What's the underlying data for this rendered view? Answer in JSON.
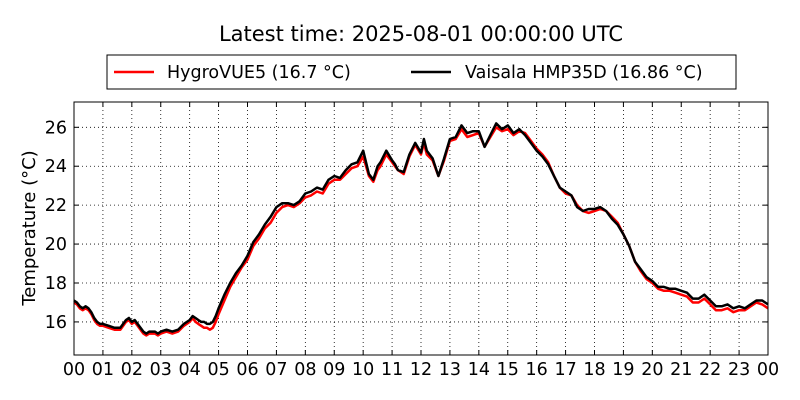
{
  "chart_data": {
    "type": "line",
    "title": "Latest time: 2025-08-01 00:00:00 UTC",
    "xlabel": "",
    "ylabel": "Temperature (°C)",
    "x_unit": "hour of day (UTC)",
    "xlim": [
      0,
      24
    ],
    "ylim": [
      14.3,
      27.3
    ],
    "x_ticks": [
      0,
      1,
      2,
      3,
      4,
      5,
      6,
      7,
      8,
      9,
      10,
      11,
      12,
      13,
      14,
      15,
      16,
      17,
      18,
      19,
      20,
      21,
      22,
      23,
      24
    ],
    "x_tick_labels": [
      "00",
      "01",
      "02",
      "03",
      "04",
      "05",
      "06",
      "07",
      "08",
      "09",
      "10",
      "11",
      "12",
      "13",
      "14",
      "15",
      "16",
      "17",
      "18",
      "19",
      "20",
      "21",
      "22",
      "23",
      "00"
    ],
    "y_ticks": [
      16,
      18,
      20,
      22,
      24,
      26
    ],
    "grid": true,
    "legend_position": "top-center",
    "series": [
      {
        "name": "HygroVUE5 (16.7 °C)",
        "color": "#ff0000",
        "x": [
          0,
          0.1,
          0.2,
          0.3,
          0.4,
          0.5,
          0.6,
          0.7,
          0.8,
          0.9,
          1.0,
          1.2,
          1.4,
          1.6,
          1.8,
          1.9,
          2.0,
          2.1,
          2.2,
          2.3,
          2.4,
          2.5,
          2.6,
          2.7,
          2.8,
          2.9,
          3.0,
          3.2,
          3.4,
          3.6,
          3.8,
          4.0,
          4.1,
          4.2,
          4.3,
          4.4,
          4.5,
          4.6,
          4.7,
          4.8,
          4.9,
          5.0,
          5.2,
          5.4,
          5.6,
          5.8,
          6.0,
          6.2,
          6.4,
          6.6,
          6.8,
          7.0,
          7.2,
          7.4,
          7.6,
          7.8,
          8.0,
          8.2,
          8.4,
          8.6,
          8.8,
          9.0,
          9.2,
          9.4,
          9.6,
          9.8,
          10.0,
          10.2,
          10.35,
          10.5,
          10.6,
          10.8,
          11.0,
          11.1,
          11.2,
          11.4,
          11.6,
          11.8,
          12.0,
          12.1,
          12.2,
          12.4,
          12.6,
          12.8,
          13.0,
          13.2,
          13.4,
          13.6,
          13.8,
          14.0,
          14.2,
          14.4,
          14.6,
          14.8,
          15.0,
          15.2,
          15.4,
          15.6,
          15.8,
          16.0,
          16.2,
          16.4,
          16.6,
          16.8,
          17.0,
          17.2,
          17.4,
          17.6,
          17.8,
          18.0,
          18.2,
          18.4,
          18.6,
          18.8,
          19.0,
          19.2,
          19.4,
          19.6,
          19.8,
          20.0,
          20.2,
          20.4,
          20.6,
          20.8,
          21.0,
          21.2,
          21.4,
          21.6,
          21.8,
          22.0,
          22.2,
          22.4,
          22.6,
          22.8,
          23.0,
          23.2,
          23.4,
          23.6,
          23.8,
          24.0
        ],
        "y": [
          17.0,
          16.9,
          16.7,
          16.6,
          16.7,
          16.6,
          16.4,
          16.1,
          15.9,
          15.8,
          15.8,
          15.7,
          15.6,
          15.6,
          16.0,
          16.1,
          15.9,
          16.0,
          15.8,
          15.6,
          15.4,
          15.3,
          15.4,
          15.4,
          15.4,
          15.3,
          15.4,
          15.5,
          15.4,
          15.5,
          15.8,
          16.0,
          16.2,
          16.0,
          15.9,
          15.8,
          15.7,
          15.7,
          15.6,
          15.7,
          16.0,
          16.4,
          17.1,
          17.8,
          18.3,
          18.8,
          19.2,
          19.9,
          20.3,
          20.8,
          21.1,
          21.6,
          21.9,
          22.0,
          21.9,
          22.1,
          22.4,
          22.5,
          22.7,
          22.6,
          23.1,
          23.3,
          23.3,
          23.6,
          23.9,
          24.0,
          24.5,
          23.5,
          23.2,
          23.8,
          24.0,
          24.6,
          24.2,
          24.0,
          23.8,
          23.6,
          24.5,
          25.1,
          24.6,
          25.2,
          24.6,
          24.3,
          23.5,
          24.3,
          25.3,
          25.4,
          25.9,
          25.5,
          25.6,
          25.7,
          25.0,
          25.5,
          26.0,
          25.8,
          25.9,
          25.6,
          25.8,
          25.7,
          25.3,
          24.9,
          24.6,
          24.2,
          23.5,
          22.9,
          22.6,
          22.5,
          22.0,
          21.7,
          21.6,
          21.7,
          21.8,
          21.7,
          21.4,
          21.1,
          20.5,
          19.9,
          19.1,
          18.6,
          18.2,
          18.0,
          17.7,
          17.6,
          17.6,
          17.5,
          17.4,
          17.3,
          17.0,
          17.0,
          17.2,
          16.9,
          16.6,
          16.6,
          16.7,
          16.5,
          16.6,
          16.6,
          16.8,
          17.0,
          16.9,
          16.7
        ]
      },
      {
        "name": "Vaisala HMP35D (16.86 °C)",
        "color": "#000000",
        "x": [
          0,
          0.1,
          0.2,
          0.3,
          0.4,
          0.5,
          0.6,
          0.7,
          0.8,
          0.9,
          1.0,
          1.2,
          1.4,
          1.6,
          1.8,
          1.9,
          2.0,
          2.1,
          2.2,
          2.3,
          2.4,
          2.5,
          2.6,
          2.7,
          2.8,
          2.9,
          3.0,
          3.2,
          3.4,
          3.6,
          3.8,
          4.0,
          4.1,
          4.2,
          4.3,
          4.4,
          4.5,
          4.6,
          4.7,
          4.8,
          4.9,
          5.0,
          5.2,
          5.4,
          5.6,
          5.8,
          6.0,
          6.2,
          6.4,
          6.6,
          6.8,
          7.0,
          7.2,
          7.4,
          7.6,
          7.8,
          8.0,
          8.2,
          8.4,
          8.6,
          8.8,
          9.0,
          9.2,
          9.4,
          9.6,
          9.8,
          10.0,
          10.2,
          10.35,
          10.5,
          10.6,
          10.8,
          11.0,
          11.1,
          11.2,
          11.4,
          11.6,
          11.8,
          12.0,
          12.1,
          12.2,
          12.4,
          12.6,
          12.8,
          13.0,
          13.2,
          13.4,
          13.6,
          13.8,
          14.0,
          14.2,
          14.4,
          14.6,
          14.8,
          15.0,
          15.2,
          15.4,
          15.6,
          15.8,
          16.0,
          16.2,
          16.4,
          16.6,
          16.8,
          17.0,
          17.2,
          17.4,
          17.6,
          17.8,
          18.0,
          18.2,
          18.4,
          18.6,
          18.8,
          19.0,
          19.2,
          19.4,
          19.6,
          19.8,
          20.0,
          20.2,
          20.4,
          20.6,
          20.8,
          21.0,
          21.2,
          21.4,
          21.6,
          21.8,
          22.0,
          22.2,
          22.4,
          22.6,
          22.8,
          23.0,
          23.2,
          23.4,
          23.6,
          23.8,
          24.0
        ],
        "y": [
          17.1,
          17.0,
          16.8,
          16.7,
          16.8,
          16.7,
          16.5,
          16.2,
          16.0,
          15.9,
          15.9,
          15.8,
          15.7,
          15.7,
          16.1,
          16.2,
          16.0,
          16.1,
          15.9,
          15.7,
          15.5,
          15.4,
          15.5,
          15.5,
          15.5,
          15.4,
          15.5,
          15.6,
          15.5,
          15.6,
          15.9,
          16.1,
          16.3,
          16.2,
          16.1,
          16.0,
          16.0,
          15.9,
          15.9,
          16.0,
          16.3,
          16.7,
          17.4,
          18.0,
          18.5,
          18.9,
          19.4,
          20.1,
          20.5,
          21.0,
          21.4,
          21.9,
          22.1,
          22.1,
          22.0,
          22.2,
          22.6,
          22.7,
          22.9,
          22.8,
          23.3,
          23.5,
          23.4,
          23.8,
          24.1,
          24.2,
          24.8,
          23.6,
          23.3,
          24.0,
          24.2,
          24.8,
          24.3,
          24.1,
          23.8,
          23.7,
          24.6,
          25.2,
          24.7,
          25.4,
          24.8,
          24.4,
          23.5,
          24.4,
          25.4,
          25.5,
          26.1,
          25.7,
          25.8,
          25.8,
          25.0,
          25.6,
          26.2,
          25.9,
          26.1,
          25.7,
          25.9,
          25.6,
          25.2,
          24.8,
          24.5,
          24.1,
          23.5,
          22.9,
          22.7,
          22.5,
          21.9,
          21.7,
          21.8,
          21.8,
          21.9,
          21.7,
          21.3,
          21.0,
          20.5,
          19.9,
          19.1,
          18.7,
          18.3,
          18.1,
          17.8,
          17.8,
          17.7,
          17.7,
          17.6,
          17.5,
          17.2,
          17.2,
          17.4,
          17.1,
          16.8,
          16.8,
          16.9,
          16.7,
          16.8,
          16.7,
          16.9,
          17.1,
          17.1,
          16.9
        ]
      }
    ]
  }
}
